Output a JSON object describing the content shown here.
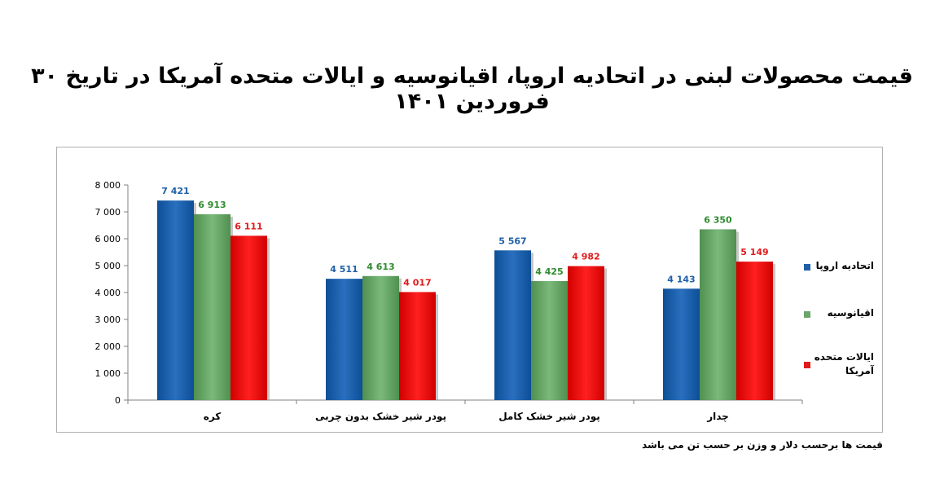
{
  "title": "قیمت محصولات لبنی در اتحادیه اروپا، اقیانوسیه و ایالات متحده آمریکا در تاریخ ۳۰ فروردین ۱۴۰۱",
  "note": "قیمت ها برحسب دلار و وزن بر حسب تن می باشد",
  "colors": {
    "eu": "#1f5fa8",
    "oceania": "#6aa56a",
    "usa": "#e21a1a",
    "eu_label": "#1f5fa8",
    "oceania_label": "#2e8b2e",
    "usa_label": "#e21a1a"
  },
  "chart_data": {
    "type": "bar",
    "categories": [
      "کره",
      "پودر شیر خشک بدون چربی",
      "پودر شیر خشک کامل",
      "چدار"
    ],
    "series": [
      {
        "name": "اتحادیه اروپا",
        "values": [
          7421,
          4511,
          5567,
          4143
        ],
        "labels": [
          "7 421",
          "4 511",
          "5 567",
          "4 143"
        ]
      },
      {
        "name": "اقیانوسیه",
        "values": [
          6913,
          4613,
          4425,
          6350
        ],
        "labels": [
          "6 913",
          "4 613",
          "4 425",
          "6 350"
        ]
      },
      {
        "name": "ایالات متحده آمریکا",
        "values": [
          6111,
          4017,
          4982,
          5149
        ],
        "labels": [
          "6 111",
          "4 017",
          "4 982",
          "5 149"
        ]
      }
    ],
    "ylim": [
      0,
      8000
    ],
    "yticks": [
      0,
      1000,
      2000,
      3000,
      4000,
      5000,
      6000,
      7000,
      8000
    ],
    "ytick_labels": [
      "0",
      "1 000",
      "2 000",
      "3 000",
      "4 000",
      "5 000",
      "6 000",
      "7 000",
      "8 000"
    ],
    "legend_position": "right",
    "grid": false
  },
  "legend": [
    {
      "line1": "اتحادیه اروپا",
      "line2": ""
    },
    {
      "line1": "اقیانوسیه",
      "line2": ""
    },
    {
      "line1": "ایالات متحده",
      "line2": "آمریکا"
    }
  ]
}
